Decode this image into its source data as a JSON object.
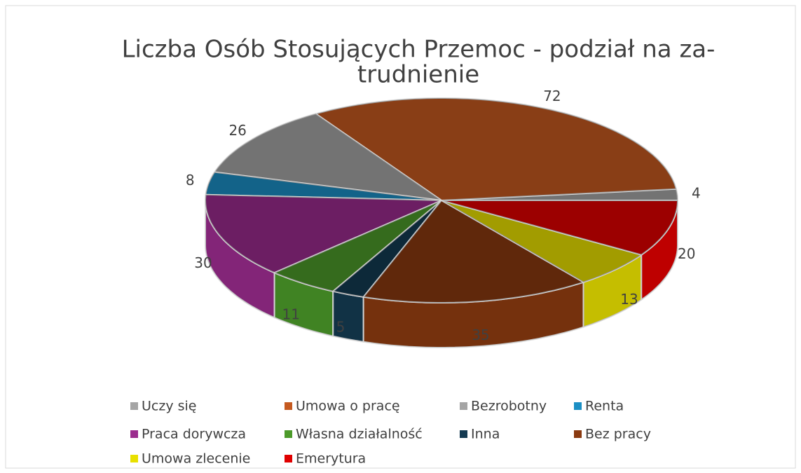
{
  "chart_data": {
    "type": "pie3d",
    "title": [
      "Liczba Osób Stosujących Przemoc - podział na za-",
      "trudnienie"
    ],
    "categories": [
      "Uczy się",
      "Umowa o pracę",
      "Bezrobotny",
      "Renta",
      "Praca dorywcza",
      "Własna działalność",
      "Inna",
      "Bez pracy",
      "Umowa zlecenie",
      "Emerytura"
    ],
    "values": [
      4,
      72,
      26,
      8,
      30,
      11,
      5,
      35,
      13,
      20
    ],
    "colors": [
      "#a5a5a5",
      "#c55a20",
      "#a5a5a5",
      "#1c8fc4",
      "#9b2c8e",
      "#4c9a2a",
      "#143b52",
      "#8a3a10",
      "#e8e000",
      "#e00000"
    ],
    "legend": "bottom"
  }
}
